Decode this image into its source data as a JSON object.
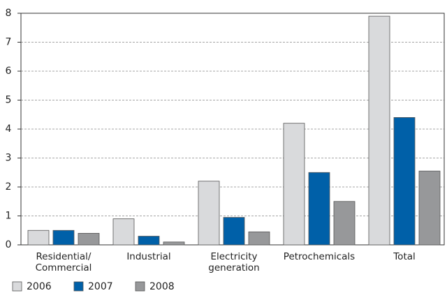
{
  "chart_data": {
    "type": "bar",
    "categories": [
      "Residential/ Commercial",
      "Industrial",
      "Electricity generation",
      "Petrochemicals",
      "Total"
    ],
    "series": [
      {
        "name": "2006",
        "color": "#d9dadc",
        "values": [
          0.5,
          0.9,
          2.2,
          4.2,
          7.9
        ]
      },
      {
        "name": "2007",
        "color": "#0060a8",
        "values": [
          0.5,
          0.3,
          0.95,
          2.5,
          4.4
        ]
      },
      {
        "name": "2008",
        "color": "#97989a",
        "values": [
          0.4,
          0.1,
          0.45,
          1.5,
          2.55
        ]
      }
    ],
    "ylim": [
      0,
      8
    ],
    "yticks": [
      0,
      1,
      2,
      3,
      4,
      5,
      6,
      7,
      8
    ],
    "grid": true
  }
}
